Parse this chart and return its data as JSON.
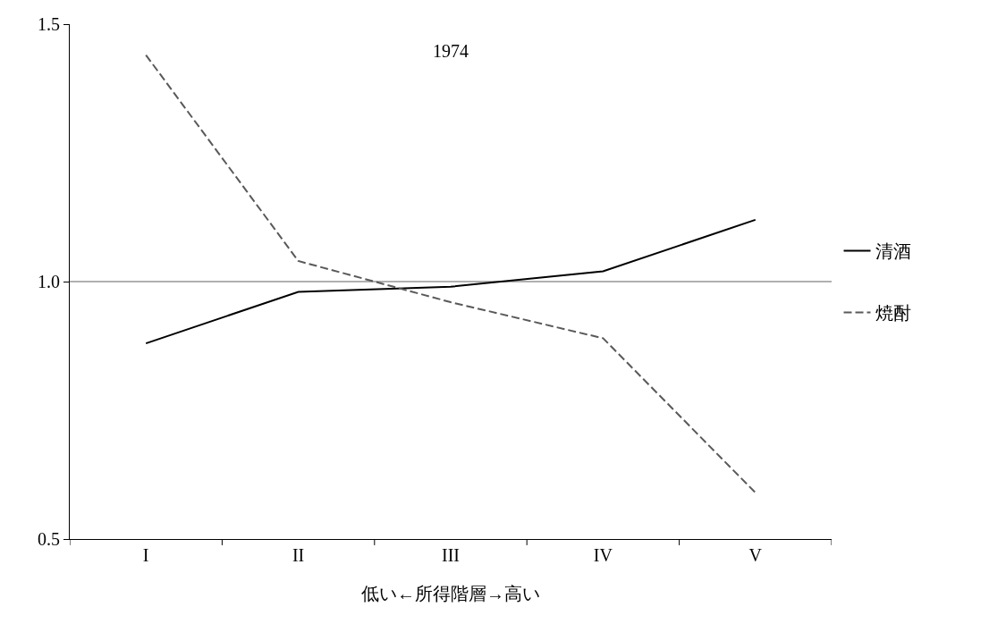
{
  "chart_data": {
    "type": "line",
    "xlabel": "低い←所得階層→高い",
    "categories": [
      "I",
      "II",
      "III",
      "IV",
      "V"
    ],
    "series": [
      {
        "name": "清酒",
        "color": "#000000",
        "line_style": "solid",
        "values": [
          0.88,
          0.98,
          0.99,
          1.02,
          1.12
        ]
      },
      {
        "name": "焼酎",
        "color": "#595959",
        "line_style": "dashed",
        "values": [
          1.44,
          1.04,
          0.96,
          0.89,
          0.59
        ]
      }
    ],
    "ylim": [
      0.5,
      1.5
    ],
    "yticks": [
      {
        "value": 0.5,
        "label": "0.5"
      },
      {
        "value": 1.0,
        "label": "1.0"
      },
      {
        "value": 1.5,
        "label": "1.5"
      }
    ],
    "ref_lines": [
      {
        "axis": "y",
        "value": 1.0,
        "color": "#969696"
      }
    ],
    "annotations": [
      "1974"
    ],
    "grid": false,
    "legend": "right",
    "marker": "none"
  }
}
